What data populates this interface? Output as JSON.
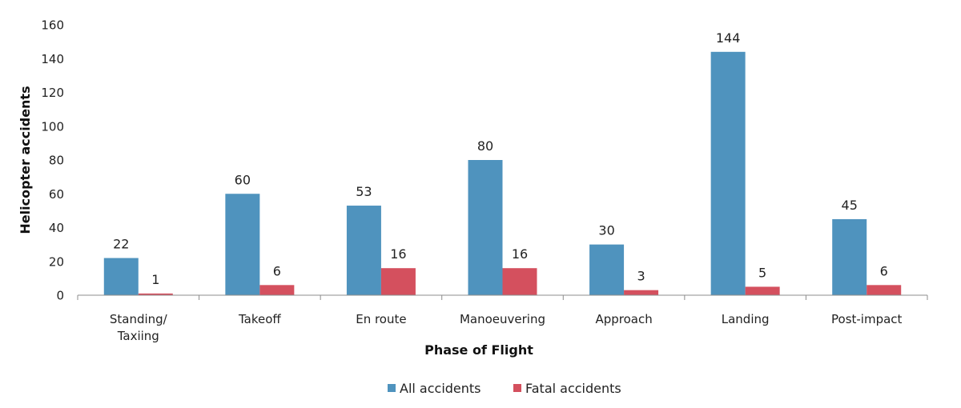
{
  "chart_data": {
    "type": "bar",
    "title": "",
    "xlabel": "Phase of Flight",
    "ylabel": "Helicopter accidents",
    "categories": [
      [
        "Standing/",
        "Taxiing"
      ],
      [
        "Takeoff"
      ],
      [
        "En route"
      ],
      [
        "Manoeuvering"
      ],
      [
        "Approach"
      ],
      [
        "Landing"
      ],
      [
        "Post-impact"
      ]
    ],
    "series": [
      {
        "name": "All accidents",
        "color": "#4f93be",
        "values": [
          22,
          60,
          53,
          80,
          30,
          144,
          45
        ]
      },
      {
        "name": "Fatal accidents",
        "color": "#d4505e",
        "values": [
          1,
          6,
          16,
          16,
          3,
          5,
          6
        ]
      }
    ],
    "ylim": [
      0,
      160
    ],
    "yticks": [
      0,
      20,
      40,
      60,
      80,
      100,
      120,
      140,
      160
    ],
    "grid": false,
    "legend_position": "bottom-center",
    "data_labels": true
  }
}
